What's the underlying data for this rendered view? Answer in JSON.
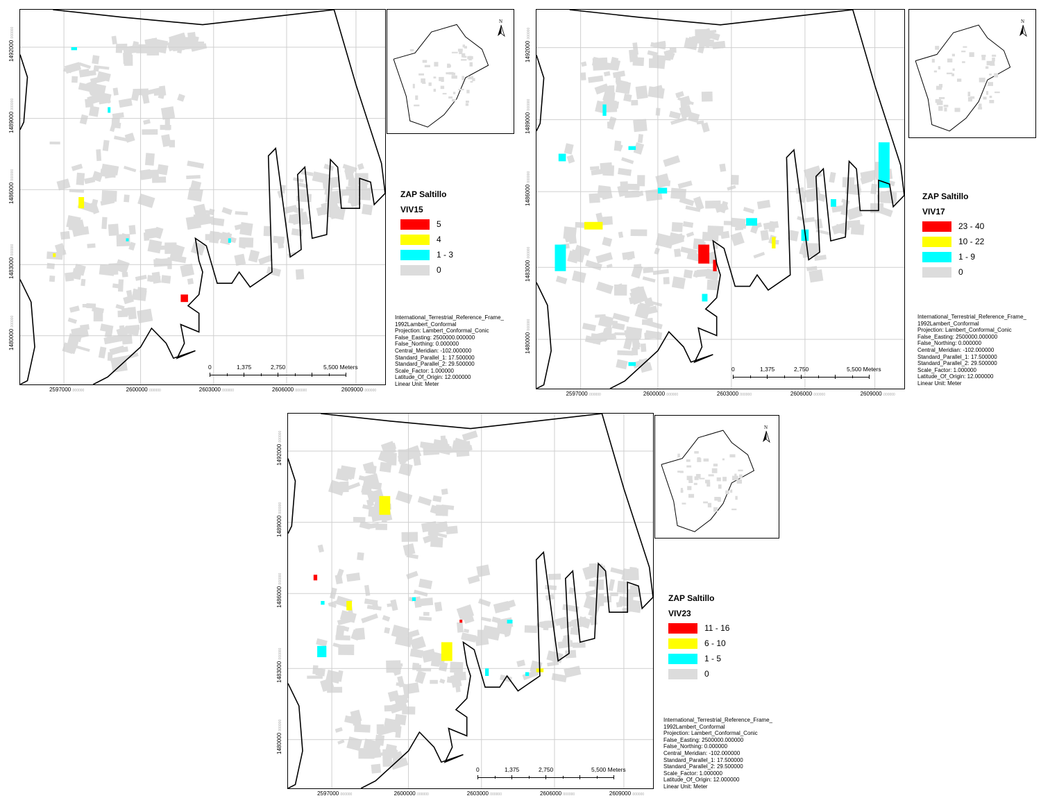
{
  "common": {
    "legend_title": "ZAP Saltillo",
    "colors": {
      "high": "#ff0000",
      "mid": "#ffff00",
      "low": "#00ffff",
      "zero": "#dcdcdc"
    },
    "x_ticks": [
      "2597000",
      "2600000",
      "2603000",
      "2606000",
      "2609000"
    ],
    "x_tick_suffix": ".000000",
    "y_ticks": [
      "1492000",
      "1489000",
      "1486000",
      "1483000",
      "1480000"
    ],
    "y_tick_suffix": ".000000",
    "scale_labels": [
      "0",
      "1,375",
      "2,750",
      "5,500 Meters"
    ],
    "north_label": "N",
    "projection_lines": [
      "International_Terrestrial_Reference_Frame_",
      "1992Lambert_Conformal",
      "Projection: Lambert_Conformal_Conic",
      "False_Easting: 2500000.000000",
      "False_Northing: 0.000000",
      "Central_Meridian: -102.000000",
      "Standard_Parallel_1: 17.500000",
      "Standard_Parallel_2: 29.500000",
      "Scale_Factor: 1.000000",
      "Latitude_Of_Origin: 12.000000",
      "Linear Unit: Meter"
    ]
  },
  "maps": [
    {
      "id": "viv15",
      "variable": "VIV15",
      "classes": [
        {
          "label": "5",
          "color": "#ff0000"
        },
        {
          "label": "4",
          "color": "#ffff00"
        },
        {
          "label": "1 - 3",
          "color": "#00ffff"
        },
        {
          "label": "0",
          "color": "#dcdcdc"
        }
      ]
    },
    {
      "id": "viv17",
      "variable": "VIV17",
      "classes": [
        {
          "label": "23 - 40",
          "color": "#ff0000"
        },
        {
          "label": "10 - 22",
          "color": "#ffff00"
        },
        {
          "label": "1 - 9",
          "color": "#00ffff"
        },
        {
          "label": "0",
          "color": "#dcdcdc"
        }
      ]
    },
    {
      "id": "viv23",
      "variable": "VIV23",
      "classes": [
        {
          "label": "11 - 16",
          "color": "#ff0000"
        },
        {
          "label": "6 - 10",
          "color": "#ffff00"
        },
        {
          "label": "1 - 5",
          "color": "#00ffff"
        },
        {
          "label": "0",
          "color": "#dcdcdc"
        }
      ]
    }
  ]
}
